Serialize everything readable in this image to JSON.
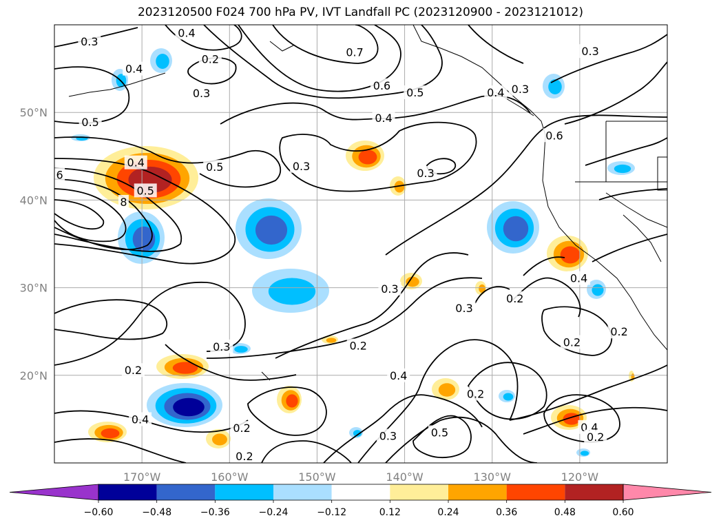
{
  "title": "2023120500 F024 700 hPa PV, IVT Landfall PC (2023120900 - 2023121012)",
  "colors": {
    "levels": [
      "#9933cc",
      "#000099",
      "#3366cc",
      "#00bfff",
      "#aadfff",
      "#ffffff",
      "#ffee99",
      "#ffa500",
      "#ff4500",
      "#b22222",
      "#ff88aa"
    ],
    "contour": "#000000",
    "grid": "#aaaaaa",
    "coast": "#000000"
  },
  "chart_data": {
    "type": "map-contour",
    "title": "2023120500 F024 700 hPa PV, IVT Landfall PC (2023120900 - 2023121012)",
    "lon_range": [
      -180,
      -110
    ],
    "lat_range": [
      10,
      60
    ],
    "lon_ticks": [
      "170°W",
      "160°W",
      "150°W",
      "140°W",
      "130°W",
      "120°W"
    ],
    "lat_ticks": [
      "20°N",
      "30°N",
      "40°N",
      "50°N"
    ],
    "grid": true,
    "colorbar_ticks": [
      "−0.60",
      "−0.48",
      "−0.36",
      "−0.24",
      "−0.12",
      "0.12",
      "0.24",
      "0.36",
      "0.48",
      "0.60"
    ],
    "colorbar_extend": "both",
    "contour_labels": [
      {
        "text": "0.3",
        "lon": -176,
        "lat": 58.1
      },
      {
        "text": "0.4",
        "lon": -164.9,
        "lat": 59.1
      },
      {
        "text": "0.4",
        "lon": -170.9,
        "lat": 55.0
      },
      {
        "text": "0.2",
        "lon": -162.2,
        "lat": 56.1
      },
      {
        "text": "0.3",
        "lon": -163.2,
        "lat": 52.2
      },
      {
        "text": "0.5",
        "lon": -175.9,
        "lat": 48.9
      },
      {
        "text": "0.5",
        "lon": -161.7,
        "lat": 43.8
      },
      {
        "text": "0.4",
        "lon": -170.7,
        "lat": 44.3
      },
      {
        "text": "0.5",
        "lon": -169.6,
        "lat": 41.1
      },
      {
        "text": "6",
        "lon": -179.4,
        "lat": 42.9
      },
      {
        "text": "8",
        "lon": -172.1,
        "lat": 39.8
      },
      {
        "text": "0.7",
        "lon": -145.7,
        "lat": 56.9
      },
      {
        "text": "0.6",
        "lon": -142.6,
        "lat": 53.1
      },
      {
        "text": "0.5",
        "lon": -138.8,
        "lat": 52.3
      },
      {
        "text": "0.4",
        "lon": -142.4,
        "lat": 49.4
      },
      {
        "text": "0.3",
        "lon": -151.8,
        "lat": 43.9
      },
      {
        "text": "0.3",
        "lon": -137.6,
        "lat": 43.1
      },
      {
        "text": "0.3",
        "lon": -118.8,
        "lat": 57.0
      },
      {
        "text": "0.3",
        "lon": -126.8,
        "lat": 52.7
      },
      {
        "text": "0.4",
        "lon": -129.6,
        "lat": 52.3
      },
      {
        "text": "0.6",
        "lon": -122.9,
        "lat": 47.4
      },
      {
        "text": "0.3",
        "lon": -160.9,
        "lat": 23.3
      },
      {
        "text": "0.2",
        "lon": -171.0,
        "lat": 20.6
      },
      {
        "text": "0.4",
        "lon": -170.2,
        "lat": 15.0
      },
      {
        "text": "0.2",
        "lon": -158.6,
        "lat": 14.0
      },
      {
        "text": "0.2",
        "lon": -158.3,
        "lat": 10.8
      },
      {
        "text": "0.3",
        "lon": -141.7,
        "lat": 29.9
      },
      {
        "text": "0.2",
        "lon": -145.3,
        "lat": 23.4
      },
      {
        "text": "0.3",
        "lon": -133.2,
        "lat": 27.7
      },
      {
        "text": "0.2",
        "lon": -127.4,
        "lat": 28.8
      },
      {
        "text": "0.4",
        "lon": -140.7,
        "lat": 20.0
      },
      {
        "text": "0.2",
        "lon": -131.9,
        "lat": 17.9
      },
      {
        "text": "0.5",
        "lon": -136.0,
        "lat": 13.5
      },
      {
        "text": "0.3",
        "lon": -141.9,
        "lat": 13.1
      },
      {
        "text": "0.4",
        "lon": -120.1,
        "lat": 31.1
      },
      {
        "text": "0.2",
        "lon": -120.9,
        "lat": 23.8
      },
      {
        "text": "0.2",
        "lon": -115.5,
        "lat": 25.0
      },
      {
        "text": "0.4",
        "lon": -118.9,
        "lat": 14.1
      },
      {
        "text": "0.2",
        "lon": -118.2,
        "lat": 13.0
      }
    ]
  }
}
